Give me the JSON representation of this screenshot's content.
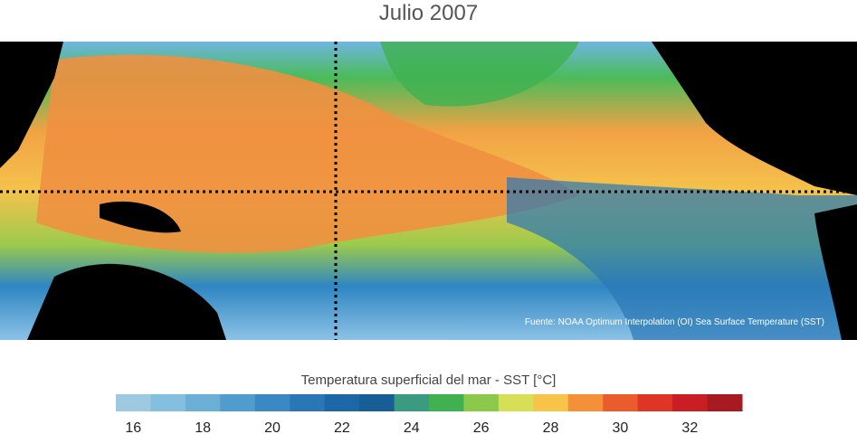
{
  "title": "Julio 2007",
  "source_text": "Fuente: NOAA Optimum Interpolation (OI) Sea Surface Temperature (SST)",
  "map": {
    "ocean_gradient": [
      "#2d7fbf",
      "#3fa65a",
      "#e3dd55",
      "#f2a345",
      "#ee7f3a"
    ],
    "land_color": "#000000",
    "marker_lines": [
      "equator",
      "dateline"
    ]
  },
  "colorbar": {
    "title": "Temperatura superficial del mar - SST  [°C]",
    "bins": [
      "#9ecae1",
      "#84bfe0",
      "#6baed6",
      "#4f9ccd",
      "#3b89c2",
      "#2a77b6",
      "#1c68a6",
      "#175e96",
      "#3a9b80",
      "#3fb150",
      "#8cc84a",
      "#d7df56",
      "#f7c348",
      "#f39038",
      "#ea5c2c",
      "#de3527",
      "#c81e24",
      "#a81a22"
    ],
    "tick_labels": [
      "16",
      "18",
      "20",
      "22",
      "24",
      "26",
      "28",
      "30",
      "32"
    ]
  }
}
